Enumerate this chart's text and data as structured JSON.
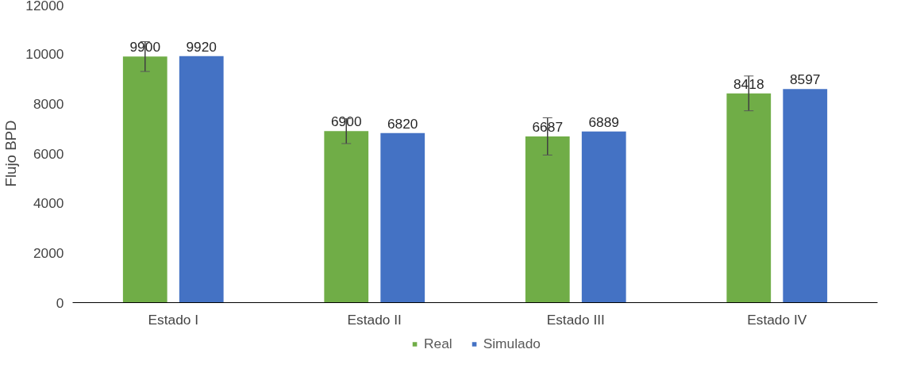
{
  "chart_data": {
    "type": "bar",
    "ylabel": "Flujo BPD",
    "categories": [
      "Estado I",
      "Estado II",
      "Estado III",
      "Estado IV"
    ],
    "series": [
      {
        "name": "Real",
        "color": "#70ad47",
        "values": [
          9900,
          6900,
          6687,
          8418
        ],
        "errors": [
          600,
          500,
          750,
          700
        ]
      },
      {
        "name": "Simulado",
        "color": "#4472c4",
        "values": [
          9920,
          6820,
          6889,
          8597
        ]
      }
    ],
    "ylim": [
      0,
      12000
    ],
    "yticks": [
      0,
      2000,
      4000,
      6000,
      8000,
      10000,
      12000
    ],
    "grid": false,
    "legend": "bottom",
    "data_labels": true
  }
}
